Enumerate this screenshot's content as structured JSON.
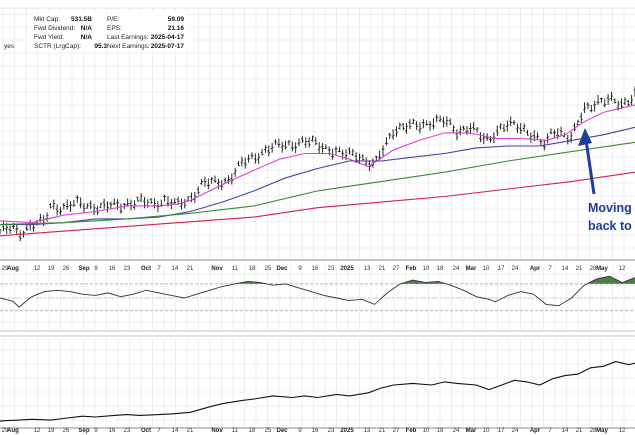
{
  "info": {
    "left": [
      {
        "label": "Mkt Cap:",
        "value": "531.5B"
      },
      {
        "label": "Fwd Dividend:",
        "value": "N/A"
      },
      {
        "label": "Fwd Yield:",
        "value": "N/A"
      },
      {
        "label": "SCTR (LrgCap):",
        "value": "95.3"
      }
    ],
    "right": [
      {
        "label": "P/E:",
        "value": "59.09"
      },
      {
        "label": "EPS:",
        "value": "21.16"
      },
      {
        "label": "Last Earnings:",
        "value": "2025-04-17"
      },
      {
        "label": "Next Earnings:",
        "value": "2025-07-17"
      }
    ],
    "fragment": "yes"
  },
  "annotation": {
    "line1": "Moving",
    "line2": "back to"
  },
  "chart_data": [
    {
      "type": "line",
      "panel": "price",
      "grid": true,
      "x_range": [
        0,
        100
      ],
      "y_range": [
        0,
        100
      ],
      "ohlc_bars": {
        "count": 190
      },
      "series": [
        {
          "key": "price",
          "values": [
            [
              0,
              8
            ],
            [
              2,
              10
            ],
            [
              3,
              7
            ],
            [
              5,
              12
            ],
            [
              7,
              13
            ],
            [
              8,
              22
            ],
            [
              10,
              21
            ],
            [
              12,
              23
            ],
            [
              14,
              22
            ],
            [
              16,
              21
            ],
            [
              18,
              22
            ],
            [
              20,
              23
            ],
            [
              22,
              24
            ],
            [
              24,
              23
            ],
            [
              26,
              25
            ],
            [
              28,
              22
            ],
            [
              30,
              26
            ],
            [
              32,
              34
            ],
            [
              34,
              34
            ],
            [
              36,
              36
            ],
            [
              38,
              44
            ],
            [
              40,
              48
            ],
            [
              42,
              52
            ],
            [
              44,
              54
            ],
            [
              46,
              55
            ],
            [
              48,
              56
            ],
            [
              50,
              55
            ],
            [
              52,
              52
            ],
            [
              54,
              49
            ],
            [
              56,
              50
            ],
            [
              58,
              45
            ],
            [
              59,
              43
            ],
            [
              60,
              50
            ],
            [
              62,
              63
            ],
            [
              64,
              64
            ],
            [
              66,
              65
            ],
            [
              68,
              67
            ],
            [
              70,
              67
            ],
            [
              72,
              62
            ],
            [
              74,
              64
            ],
            [
              76,
              58
            ],
            [
              77,
              57
            ],
            [
              78,
              62
            ],
            [
              80,
              65
            ],
            [
              82,
              64
            ],
            [
              84,
              60
            ],
            [
              85,
              56
            ],
            [
              86,
              54
            ],
            [
              87,
              62
            ],
            [
              88,
              62
            ],
            [
              90,
              58
            ],
            [
              92,
              73
            ],
            [
              94,
              78
            ],
            [
              96,
              78
            ],
            [
              98,
              76
            ],
            [
              100,
              82
            ]
          ],
          "color": "#222222"
        },
        {
          "key": "ma_short",
          "values": [
            [
              0,
              14
            ],
            [
              5,
              13
            ],
            [
              10,
              17
            ],
            [
              15,
              19
            ],
            [
              20,
              22
            ],
            [
              25,
              22
            ],
            [
              28,
              23
            ],
            [
              30,
              25
            ],
            [
              33,
              30
            ],
            [
              36,
              35
            ],
            [
              40,
              41
            ],
            [
              44,
              47
            ],
            [
              48,
              50
            ],
            [
              52,
              50
            ],
            [
              55,
              47
            ],
            [
              58,
              43
            ],
            [
              62,
              52
            ],
            [
              66,
              57
            ],
            [
              70,
              61
            ],
            [
              74,
              61
            ],
            [
              78,
              58
            ],
            [
              82,
              58
            ],
            [
              86,
              57
            ],
            [
              89,
              60
            ],
            [
              92,
              67
            ],
            [
              95,
              72
            ],
            [
              100,
              76
            ]
          ],
          "color": "#e040d0"
        },
        {
          "key": "ma_mid",
          "values": [
            [
              0,
              12
            ],
            [
              5,
              12
            ],
            [
              10,
              13
            ],
            [
              15,
              15
            ],
            [
              20,
              15
            ],
            [
              25,
              16
            ],
            [
              30,
              19
            ],
            [
              35,
              24
            ],
            [
              40,
              30
            ],
            [
              45,
              37
            ],
            [
              50,
              42
            ],
            [
              55,
              46
            ],
            [
              60,
              46
            ],
            [
              65,
              48
            ],
            [
              70,
              50
            ],
            [
              75,
              53
            ],
            [
              80,
              54
            ],
            [
              85,
              54
            ],
            [
              90,
              57
            ],
            [
              95,
              60
            ],
            [
              100,
              64
            ]
          ],
          "color": "#4a3fa0"
        },
        {
          "key": "ma_long",
          "values": [
            [
              0,
              12
            ],
            [
              10,
              13
            ],
            [
              20,
              15
            ],
            [
              30,
              18
            ],
            [
              40,
              22
            ],
            [
              50,
              30
            ],
            [
              60,
              35
            ],
            [
              70,
              40
            ],
            [
              80,
              46
            ],
            [
              90,
              51
            ],
            [
              100,
              56
            ]
          ],
          "color": "#3a8a3a"
        },
        {
          "key": "ma_200",
          "values": [
            [
              0,
              6
            ],
            [
              20,
              11
            ],
            [
              40,
              16
            ],
            [
              50,
              21
            ],
            [
              60,
              24
            ],
            [
              70,
              27
            ],
            [
              80,
              31
            ],
            [
              90,
              35
            ],
            [
              100,
              40
            ]
          ],
          "color": "#d02050"
        }
      ]
    },
    {
      "type": "area",
      "panel": "oscillator",
      "x_range": [
        0,
        100
      ],
      "y_range": [
        0,
        100
      ],
      "series": [
        {
          "key": "oscillator",
          "values": [
            [
              0,
              50
            ],
            [
              2,
              45
            ],
            [
              3,
              36
            ],
            [
              5,
              52
            ],
            [
              7,
              60
            ],
            [
              9,
              62
            ],
            [
              11,
              60
            ],
            [
              13,
              56
            ],
            [
              15,
              54
            ],
            [
              17,
              58
            ],
            [
              19,
              52
            ],
            [
              21,
              56
            ],
            [
              23,
              62
            ],
            [
              25,
              58
            ],
            [
              27,
              54
            ],
            [
              29,
              50
            ],
            [
              31,
              56
            ],
            [
              33,
              62
            ],
            [
              35,
              68
            ],
            [
              37,
              72
            ],
            [
              39,
              76
            ],
            [
              41,
              74
            ],
            [
              43,
              70
            ],
            [
              45,
              72
            ],
            [
              47,
              66
            ],
            [
              49,
              60
            ],
            [
              51,
              54
            ],
            [
              53,
              50
            ],
            [
              55,
              46
            ],
            [
              57,
              48
            ],
            [
              59,
              40
            ],
            [
              61,
              58
            ],
            [
              63,
              72
            ],
            [
              65,
              78
            ],
            [
              67,
              74
            ],
            [
              69,
              76
            ],
            [
              71,
              70
            ],
            [
              73,
              62
            ],
            [
              75,
              52
            ],
            [
              77,
              48
            ],
            [
              78,
              44
            ],
            [
              80,
              54
            ],
            [
              82,
              60
            ],
            [
              84,
              56
            ],
            [
              86,
              40
            ],
            [
              88,
              38
            ],
            [
              90,
              50
            ],
            [
              92,
              70
            ],
            [
              94,
              80
            ],
            [
              96,
              84
            ],
            [
              98,
              74
            ],
            [
              100,
              82
            ]
          ],
          "color": "#333333"
        }
      ],
      "upper_band": 72,
      "mid_line": 50,
      "lower_band": 30
    },
    {
      "type": "line",
      "panel": "relative_strength",
      "x_range": [
        0,
        100
      ],
      "y_range": [
        0,
        100
      ],
      "series": [
        {
          "key": "relative",
          "values": [
            [
              0,
              4
            ],
            [
              3,
              5
            ],
            [
              5,
              6
            ],
            [
              8,
              5
            ],
            [
              10,
              7
            ],
            [
              13,
              10
            ],
            [
              15,
              9
            ],
            [
              18,
              11
            ],
            [
              20,
              12
            ],
            [
              22,
              11
            ],
            [
              25,
              12
            ],
            [
              27,
              13
            ],
            [
              30,
              15
            ],
            [
              33,
              22
            ],
            [
              35,
              26
            ],
            [
              38,
              30
            ],
            [
              40,
              32
            ],
            [
              43,
              36
            ],
            [
              46,
              34
            ],
            [
              48,
              36
            ],
            [
              50,
              34
            ],
            [
              53,
              38
            ],
            [
              55,
              36
            ],
            [
              58,
              40
            ],
            [
              60,
              46
            ],
            [
              62,
              50
            ],
            [
              65,
              52
            ],
            [
              68,
              50
            ],
            [
              70,
              54
            ],
            [
              72,
              52
            ],
            [
              75,
              50
            ],
            [
              77,
              44
            ],
            [
              79,
              50
            ],
            [
              81,
              56
            ],
            [
              83,
              54
            ],
            [
              85,
              50
            ],
            [
              87,
              58
            ],
            [
              89,
              62
            ],
            [
              91,
              64
            ],
            [
              93,
              72
            ],
            [
              95,
              74
            ],
            [
              97,
              80
            ],
            [
              99,
              76
            ],
            [
              100,
              78
            ]
          ],
          "color": "#111111"
        }
      ]
    },
    {
      "type": "table",
      "panel": "x_axis",
      "x_tick_labels": [
        "29",
        "Aug",
        "12",
        "19",
        "26",
        "Sep",
        "9",
        "16",
        "23",
        "Oct",
        "7",
        "14",
        "21",
        "Nov",
        "11",
        "18",
        "25",
        "Dec",
        "9",
        "16",
        "23",
        "2025",
        "13",
        "21",
        "27",
        "Feb",
        "10",
        "18",
        "24",
        "Mar",
        "10",
        "17",
        "24",
        "Apr",
        "7",
        "14",
        "21",
        "28",
        "May",
        "12"
      ]
    }
  ]
}
